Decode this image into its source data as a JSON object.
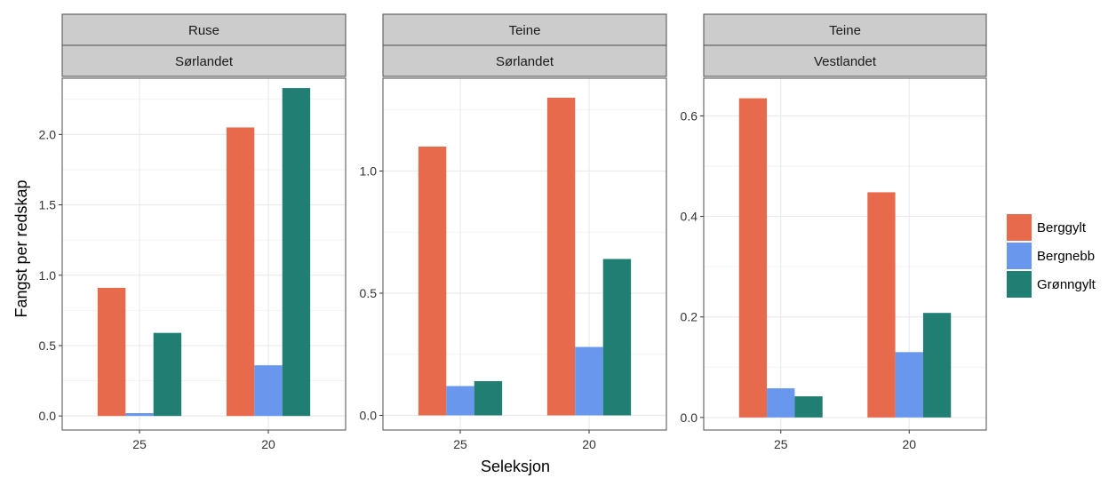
{
  "chart_data": {
    "type": "bar",
    "ylabel": "Fangst per redskap",
    "xlabel": "Seleksjon",
    "categories": [
      "25",
      "20"
    ],
    "legend": {
      "position": "right",
      "entries": [
        {
          "name": "Berggylt",
          "color": "#E66A4B"
        },
        {
          "name": "Bergnebb",
          "color": "#6A97EE"
        },
        {
          "name": "Grønngylt",
          "color": "#207E73"
        }
      ]
    },
    "grid": true,
    "panels": [
      {
        "strip_top": "Ruse",
        "strip_bottom": "Sørlandet",
        "ylim": [
          -0.1,
          2.4
        ],
        "yticks": [
          0.0,
          0.5,
          1.0,
          1.5,
          2.0
        ],
        "ytick_labels": [
          "0.0",
          "0.5",
          "1.0",
          "1.5",
          "2.0"
        ],
        "series": [
          {
            "name": "Berggylt",
            "values": [
              0.91,
              2.05
            ]
          },
          {
            "name": "Bergnebb",
            "values": [
              0.02,
              0.36
            ]
          },
          {
            "name": "Grønngylt",
            "values": [
              0.59,
              2.33
            ]
          }
        ]
      },
      {
        "strip_top": "Teine",
        "strip_bottom": "Sørlandet",
        "ylim": [
          -0.06,
          1.38
        ],
        "yticks": [
          0.0,
          0.5,
          1.0
        ],
        "ytick_labels": [
          "0.0",
          "0.5",
          "1.0"
        ],
        "series": [
          {
            "name": "Berggylt",
            "values": [
              1.1,
              1.3
            ]
          },
          {
            "name": "Bergnebb",
            "values": [
              0.12,
              0.28
            ]
          },
          {
            "name": "Grønngylt",
            "values": [
              0.14,
              0.64
            ]
          }
        ]
      },
      {
        "strip_top": "Teine",
        "strip_bottom": "Vestlandet",
        "ylim": [
          -0.025,
          0.675
        ],
        "yticks": [
          0.0,
          0.2,
          0.4,
          0.6
        ],
        "ytick_labels": [
          "0.0",
          "0.2",
          "0.4",
          "0.6"
        ],
        "series": [
          {
            "name": "Berggylt",
            "values": [
              0.635,
              0.448
            ]
          },
          {
            "name": "Bergnebb",
            "values": [
              0.058,
              0.13
            ]
          },
          {
            "name": "Grønngylt",
            "values": [
              0.042,
              0.208
            ]
          }
        ]
      }
    ]
  }
}
